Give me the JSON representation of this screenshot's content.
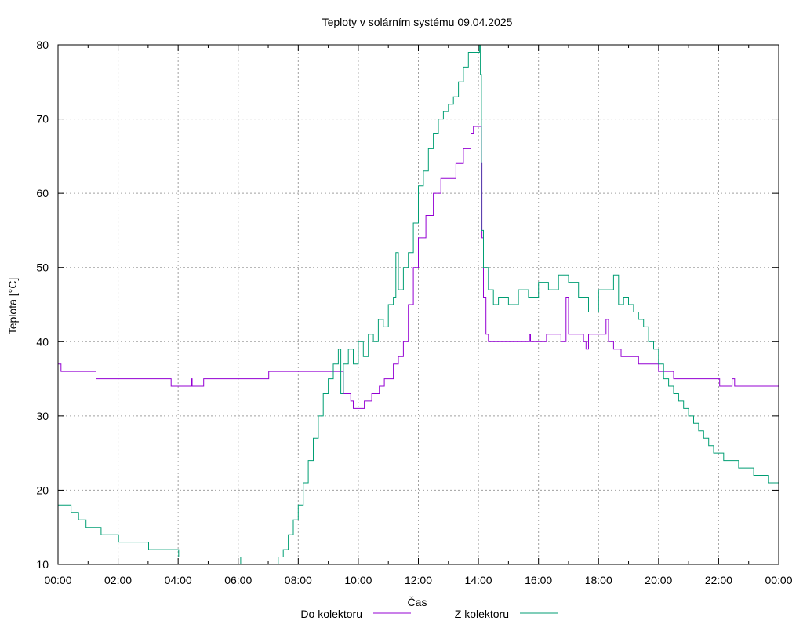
{
  "chart_data": {
    "type": "line",
    "title": "Teploty v solárním systému 09.04.2025",
    "xlabel": "Čas",
    "ylabel": "Teplota [°C]",
    "xlim": [
      "00:00",
      "24:00"
    ],
    "ylim": [
      10,
      80
    ],
    "x_ticks": [
      "00:00",
      "02:00",
      "04:00",
      "06:00",
      "08:00",
      "10:00",
      "12:00",
      "14:00",
      "16:00",
      "18:00",
      "20:00",
      "22:00",
      "00:00"
    ],
    "y_ticks": [
      10,
      20,
      30,
      40,
      50,
      60,
      70,
      80
    ],
    "grid": true,
    "legend_position": "bottom",
    "series": [
      {
        "name": "Do kolektoru",
        "color": "#9400d3",
        "points": [
          [
            "00:00",
            37
          ],
          [
            "00:06",
            36
          ],
          [
            "01:15",
            36
          ],
          [
            "01:16",
            35
          ],
          [
            "03:45",
            35
          ],
          [
            "03:46",
            34
          ],
          [
            "04:25",
            34
          ],
          [
            "04:27",
            35
          ],
          [
            "04:28",
            34
          ],
          [
            "04:50",
            34
          ],
          [
            "04:51",
            35
          ],
          [
            "07:00",
            35
          ],
          [
            "07:01",
            36
          ],
          [
            "09:25",
            36
          ],
          [
            "09:30",
            33
          ],
          [
            "09:45",
            32
          ],
          [
            "09:50",
            31
          ],
          [
            "10:10",
            31
          ],
          [
            "10:12",
            32
          ],
          [
            "10:25",
            32
          ],
          [
            "10:27",
            33
          ],
          [
            "10:40",
            33
          ],
          [
            "10:42",
            34
          ],
          [
            "10:50",
            34
          ],
          [
            "10:52",
            35
          ],
          [
            "11:05",
            35
          ],
          [
            "11:10",
            37
          ],
          [
            "11:20",
            38
          ],
          [
            "11:30",
            40
          ],
          [
            "11:40",
            45
          ],
          [
            "11:50",
            50
          ],
          [
            "12:00",
            54
          ],
          [
            "12:15",
            57
          ],
          [
            "12:30",
            60
          ],
          [
            "12:45",
            62
          ],
          [
            "13:00",
            62
          ],
          [
            "13:15",
            64
          ],
          [
            "13:30",
            66
          ],
          [
            "13:45",
            68
          ],
          [
            "13:50",
            69
          ],
          [
            "14:05",
            69
          ],
          [
            "14:06",
            64
          ],
          [
            "14:07",
            54
          ],
          [
            "14:10",
            46
          ],
          [
            "14:15",
            41
          ],
          [
            "14:20",
            40
          ],
          [
            "15:40",
            40
          ],
          [
            "15:42",
            41
          ],
          [
            "15:44",
            40
          ],
          [
            "16:15",
            40
          ],
          [
            "16:16",
            41
          ],
          [
            "16:40",
            41
          ],
          [
            "16:45",
            40
          ],
          [
            "16:55",
            46
          ],
          [
            "17:00",
            41
          ],
          [
            "17:30",
            40
          ],
          [
            "17:35",
            39
          ],
          [
            "17:40",
            41
          ],
          [
            "18:10",
            41
          ],
          [
            "18:15",
            43
          ],
          [
            "18:20",
            40
          ],
          [
            "18:30",
            39
          ],
          [
            "18:45",
            38
          ],
          [
            "19:10",
            38
          ],
          [
            "19:20",
            37
          ],
          [
            "19:45",
            37
          ],
          [
            "20:00",
            36
          ],
          [
            "20:30",
            35
          ],
          [
            "22:00",
            35
          ],
          [
            "22:02",
            34
          ],
          [
            "22:25",
            34
          ],
          [
            "22:27",
            35
          ],
          [
            "22:32",
            34
          ],
          [
            "24:00",
            34
          ]
        ]
      },
      {
        "name": "Z kolektoru",
        "color": "#009e73",
        "points": [
          [
            "00:00",
            18
          ],
          [
            "00:25",
            18
          ],
          [
            "00:26",
            17
          ],
          [
            "00:40",
            17
          ],
          [
            "00:41",
            16
          ],
          [
            "00:55",
            16
          ],
          [
            "00:56",
            15
          ],
          [
            "01:25",
            15
          ],
          [
            "01:26",
            14
          ],
          [
            "02:00",
            14
          ],
          [
            "02:01",
            13
          ],
          [
            "03:00",
            13
          ],
          [
            "03:01",
            12
          ],
          [
            "04:00",
            12
          ],
          [
            "04:01",
            11
          ],
          [
            "06:00",
            11
          ],
          [
            "06:05",
            10
          ],
          [
            "07:00",
            10
          ],
          [
            "07:20",
            11
          ],
          [
            "07:30",
            12
          ],
          [
            "07:40",
            14
          ],
          [
            "07:50",
            16
          ],
          [
            "08:00",
            18
          ],
          [
            "08:10",
            21
          ],
          [
            "08:20",
            24
          ],
          [
            "08:30",
            27
          ],
          [
            "08:40",
            30
          ],
          [
            "08:50",
            33
          ],
          [
            "09:00",
            35
          ],
          [
            "09:10",
            37
          ],
          [
            "09:20",
            39
          ],
          [
            "09:25",
            33
          ],
          [
            "09:30",
            37
          ],
          [
            "09:40",
            39
          ],
          [
            "09:50",
            37
          ],
          [
            "10:00",
            40
          ],
          [
            "10:10",
            38
          ],
          [
            "10:20",
            41
          ],
          [
            "10:30",
            40
          ],
          [
            "10:40",
            43
          ],
          [
            "10:50",
            42
          ],
          [
            "11:00",
            45
          ],
          [
            "11:10",
            46
          ],
          [
            "11:15",
            52
          ],
          [
            "11:20",
            47
          ],
          [
            "11:30",
            50
          ],
          [
            "11:40",
            52
          ],
          [
            "11:50",
            56
          ],
          [
            "12:00",
            61
          ],
          [
            "12:10",
            63
          ],
          [
            "12:20",
            66
          ],
          [
            "12:30",
            68
          ],
          [
            "12:40",
            70
          ],
          [
            "12:50",
            71
          ],
          [
            "13:00",
            72
          ],
          [
            "13:10",
            73
          ],
          [
            "13:20",
            75
          ],
          [
            "13:30",
            77
          ],
          [
            "13:40",
            79
          ],
          [
            "14:00",
            79
          ],
          [
            "14:02",
            80
          ],
          [
            "14:04",
            76
          ],
          [
            "14:06",
            55
          ],
          [
            "14:10",
            50
          ],
          [
            "14:20",
            47
          ],
          [
            "14:30",
            45
          ],
          [
            "14:40",
            46
          ],
          [
            "15:00",
            45
          ],
          [
            "15:20",
            47
          ],
          [
            "15:40",
            46
          ],
          [
            "16:00",
            48
          ],
          [
            "16:20",
            47
          ],
          [
            "16:40",
            49
          ],
          [
            "17:00",
            48
          ],
          [
            "17:20",
            46
          ],
          [
            "17:40",
            44
          ],
          [
            "18:00",
            47
          ],
          [
            "18:20",
            47
          ],
          [
            "18:30",
            49
          ],
          [
            "18:40",
            45
          ],
          [
            "18:50",
            46
          ],
          [
            "19:00",
            45
          ],
          [
            "19:10",
            44
          ],
          [
            "19:20",
            43
          ],
          [
            "19:30",
            42
          ],
          [
            "19:40",
            40
          ],
          [
            "19:50",
            39
          ],
          [
            "20:00",
            37
          ],
          [
            "20:10",
            35
          ],
          [
            "20:20",
            34
          ],
          [
            "20:30",
            33
          ],
          [
            "20:40",
            32
          ],
          [
            "20:50",
            31
          ],
          [
            "21:00",
            30
          ],
          [
            "21:10",
            29
          ],
          [
            "21:20",
            28
          ],
          [
            "21:30",
            27
          ],
          [
            "21:40",
            26
          ],
          [
            "21:50",
            25
          ],
          [
            "22:10",
            24
          ],
          [
            "22:40",
            23
          ],
          [
            "23:10",
            22
          ],
          [
            "23:40",
            21
          ],
          [
            "24:00",
            21
          ]
        ]
      }
    ]
  }
}
